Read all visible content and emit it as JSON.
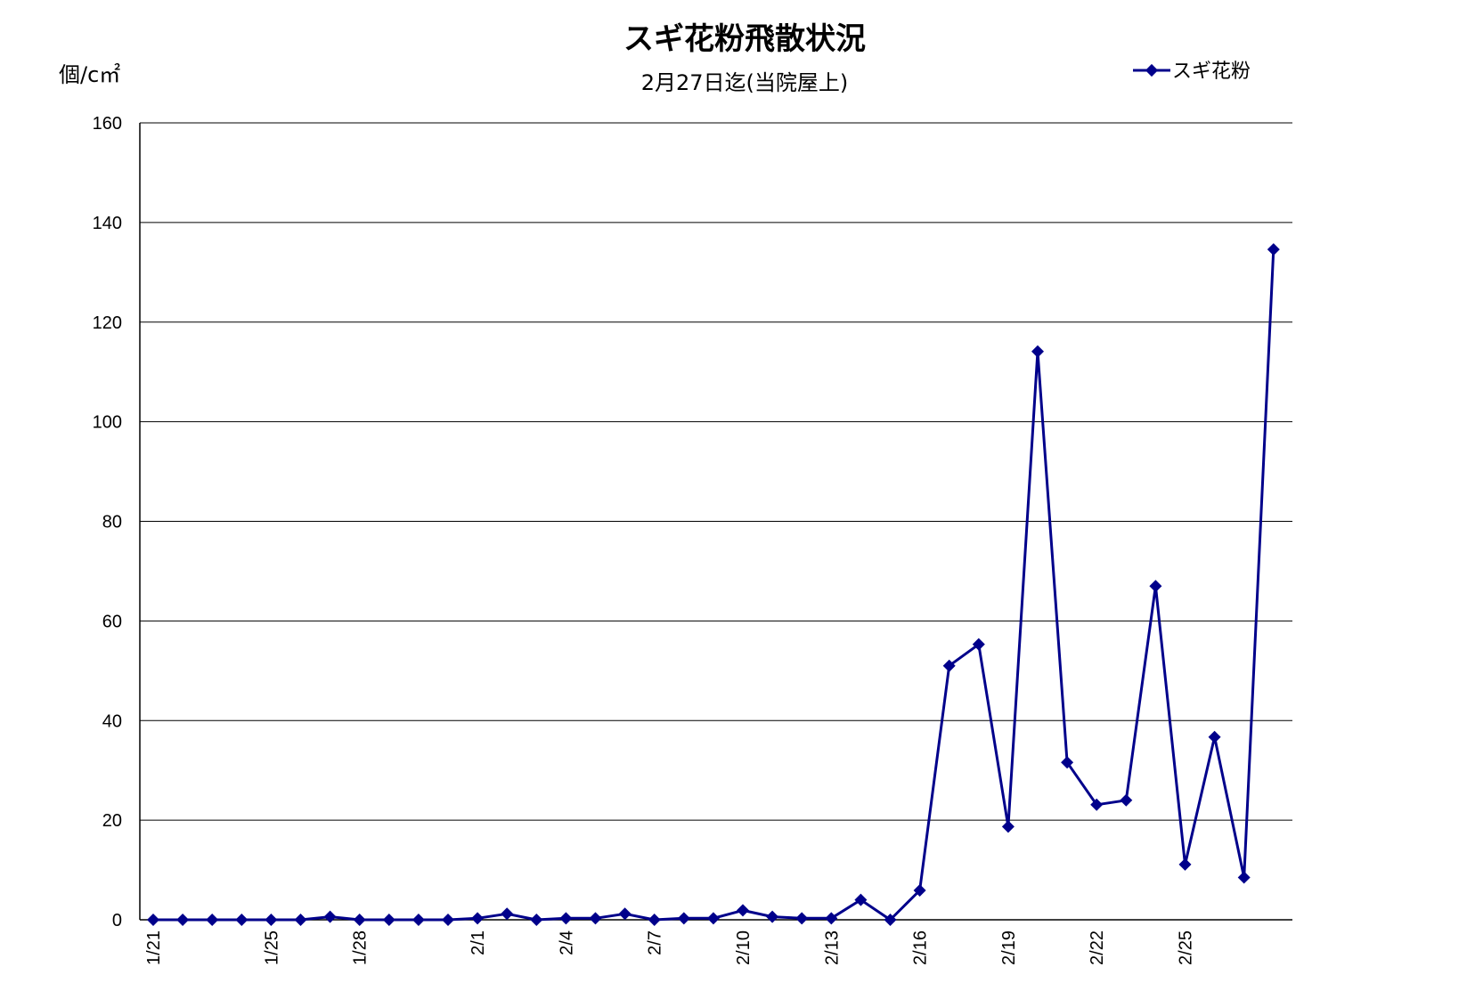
{
  "chart_data": {
    "type": "line",
    "title": "スギ花粉飛散状況",
    "subtitle": "2月27日迄(当院屋上)",
    "ylabel": "個/c㎡",
    "ylim": [
      0,
      160
    ],
    "yticks": [
      0,
      20,
      40,
      60,
      80,
      100,
      120,
      140,
      160
    ],
    "grid": true,
    "legend_position": "top-right",
    "categories": [
      "1/21",
      "1/22",
      "1/23",
      "1/24",
      "1/25",
      "1/26",
      "1/27",
      "1/28",
      "1/29",
      "1/30",
      "1/31",
      "2/1",
      "2/2",
      "2/3",
      "2/4",
      "2/5",
      "2/6",
      "2/7",
      "2/8",
      "2/9",
      "2/10",
      "2/11",
      "2/12",
      "2/13",
      "2/14",
      "2/15",
      "2/16",
      "2/17",
      "2/18",
      "2/19",
      "2/20",
      "2/21",
      "2/22",
      "2/23",
      "2/24",
      "2/25",
      "2/26",
      "2/27",
      "2/28"
    ],
    "x_tick_labels": [
      "1/21",
      "",
      "",
      "",
      "1/25",
      "",
      "",
      "1/28",
      "",
      "",
      "",
      "2/1",
      "",
      "",
      "2/4",
      "",
      "",
      "2/7",
      "",
      "",
      "2/10",
      "",
      "",
      "2/13",
      "",
      "",
      "2/16",
      "",
      "",
      "2/19",
      "",
      "",
      "2/22",
      "",
      "",
      "2/25",
      "",
      "",
      ""
    ],
    "series": [
      {
        "name": "スギ花粉",
        "color": "#00008B",
        "values": [
          0,
          0,
          0,
          0,
          0,
          0,
          0.6,
          0,
          0,
          0,
          0,
          0.3,
          1.2,
          0,
          0.3,
          0.3,
          1.2,
          0,
          0.3,
          0.3,
          1.9,
          0.6,
          0.3,
          0.3,
          4.0,
          0,
          5.9,
          51,
          55.3,
          18.7,
          114.1,
          31.6,
          23.1,
          24,
          67,
          11.1,
          36.7,
          8.5,
          134.6
        ]
      }
    ]
  }
}
